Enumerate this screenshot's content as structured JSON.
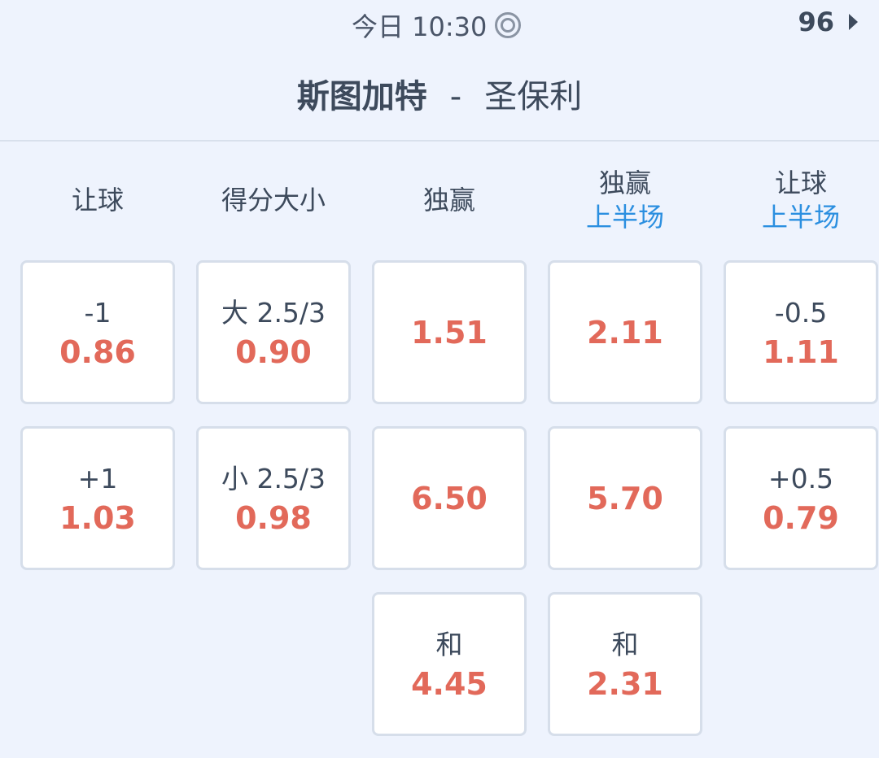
{
  "status": {
    "time": "今日 10:30",
    "live_icon": "target-icon",
    "count": "96",
    "arrow_icon": "triangle-right-icon"
  },
  "match": {
    "home": "斯图加特",
    "separator": "-",
    "away": "圣保利"
  },
  "colors": {
    "odds": "#e2695a",
    "sub": "#2b8fe0",
    "text": "#3d4a5c",
    "bg": "#eef3fd"
  },
  "columns": [
    {
      "title": "让球",
      "sub": "",
      "cells": [
        {
          "line": "-1",
          "odds": "0.86"
        },
        {
          "line": "+1",
          "odds": "1.03"
        }
      ]
    },
    {
      "title": "得分大小",
      "sub": "",
      "cells": [
        {
          "line": "大 2.5/3",
          "odds": "0.90"
        },
        {
          "line": "小 2.5/3",
          "odds": "0.98"
        }
      ]
    },
    {
      "title": "独赢",
      "sub": "",
      "cells": [
        {
          "line": "",
          "odds": "1.51"
        },
        {
          "line": "",
          "odds": "6.50"
        },
        {
          "line": "和",
          "odds": "4.45"
        }
      ]
    },
    {
      "title": "独赢",
      "sub": "上半场",
      "cells": [
        {
          "line": "",
          "odds": "2.11"
        },
        {
          "line": "",
          "odds": "5.70"
        },
        {
          "line": "和",
          "odds": "2.31"
        }
      ]
    },
    {
      "title": "让球",
      "sub": "上半场",
      "cells": [
        {
          "line": "-0.5",
          "odds": "1.11"
        },
        {
          "line": "+0.5",
          "odds": "0.79"
        }
      ]
    }
  ]
}
